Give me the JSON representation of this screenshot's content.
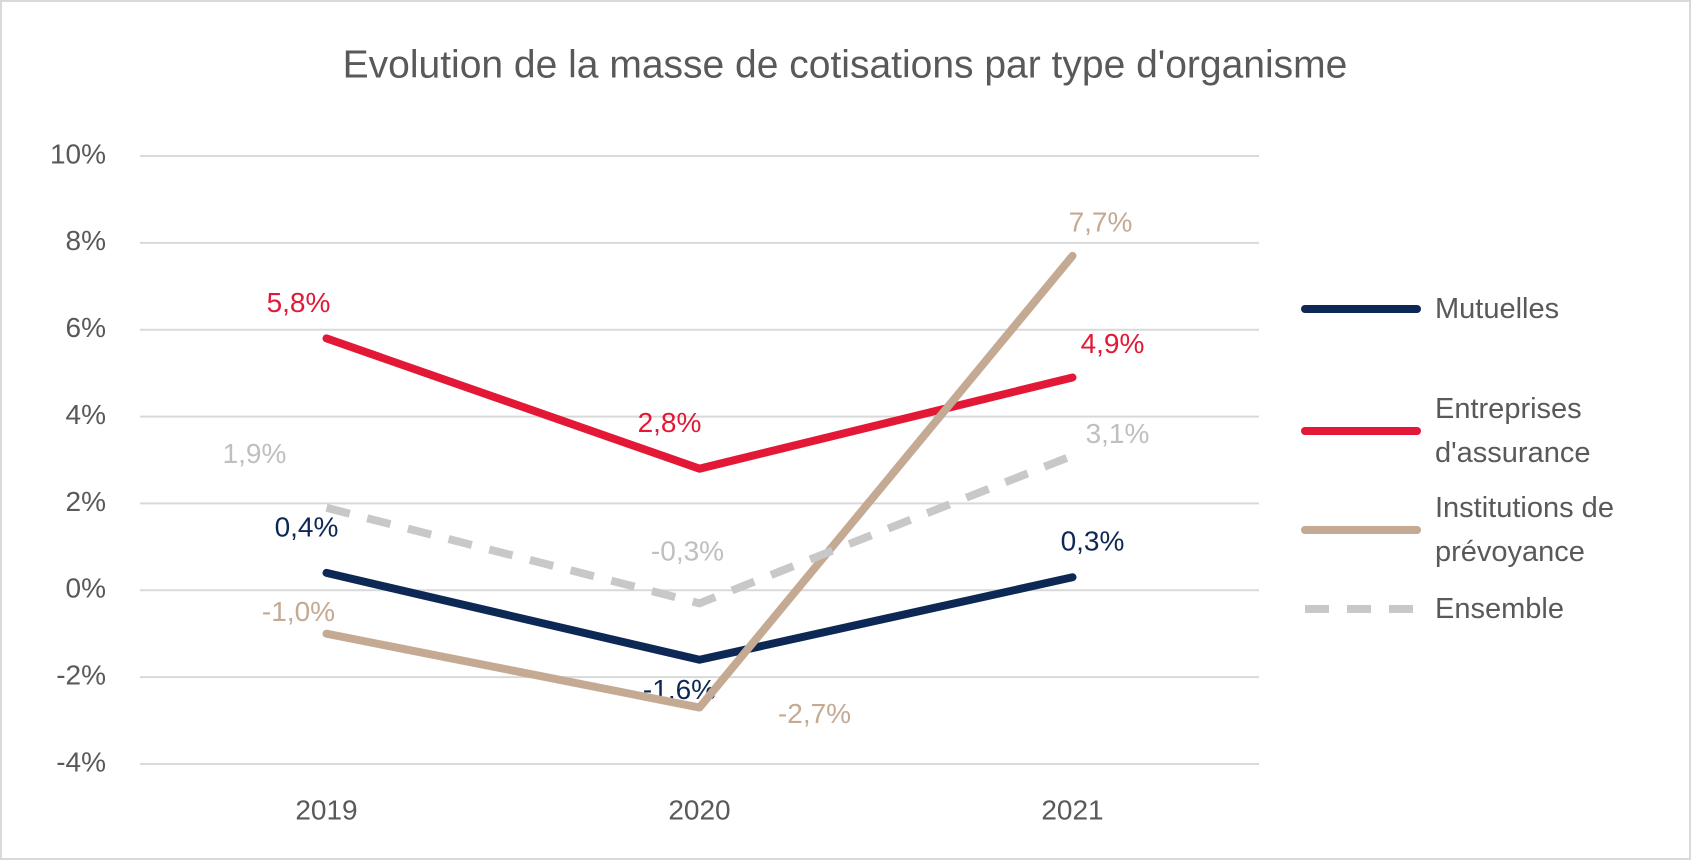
{
  "chart_data": {
    "type": "line",
    "title": "Evolution de la masse de cotisations par type d'organisme",
    "categories": [
      "2019",
      "2020",
      "2021"
    ],
    "ylim": [
      -4,
      10
    ],
    "yticks": [
      {
        "value": -4,
        "label": "-4%"
      },
      {
        "value": -2,
        "label": "-2%"
      },
      {
        "value": 0,
        "label": "0%"
      },
      {
        "value": 2,
        "label": "2%"
      },
      {
        "value": 4,
        "label": "4%"
      },
      {
        "value": 6,
        "label": "6%"
      },
      {
        "value": 8,
        "label": "8%"
      },
      {
        "value": 10,
        "label": "10%"
      }
    ],
    "grid": true,
    "legend": "right",
    "series": [
      {
        "name": "Mutuelles",
        "color": "#0e2856",
        "values": [
          0.4,
          -1.6,
          0.3
        ],
        "value_labels": [
          "0,4%",
          "-1,6%",
          "0,3%"
        ]
      },
      {
        "name": "Entreprises d'assurance",
        "color": "#e31837",
        "values": [
          5.8,
          2.8,
          4.9
        ],
        "value_labels": [
          "5,8%",
          "2,8%",
          "4,9%"
        ]
      },
      {
        "name": "Institutions de prévoyance",
        "color": "#c4a993",
        "values": [
          -1.0,
          -2.7,
          7.7
        ],
        "value_labels": [
          "-1,0%",
          "-2,7%",
          "7,7%"
        ]
      },
      {
        "name": "Ensemble",
        "color": "#c8c8c8",
        "dashed": true,
        "values": [
          1.9,
          -0.3,
          3.1
        ],
        "value_labels": [
          "1,9%",
          "-0,3%",
          "3,1%"
        ]
      }
    ]
  }
}
